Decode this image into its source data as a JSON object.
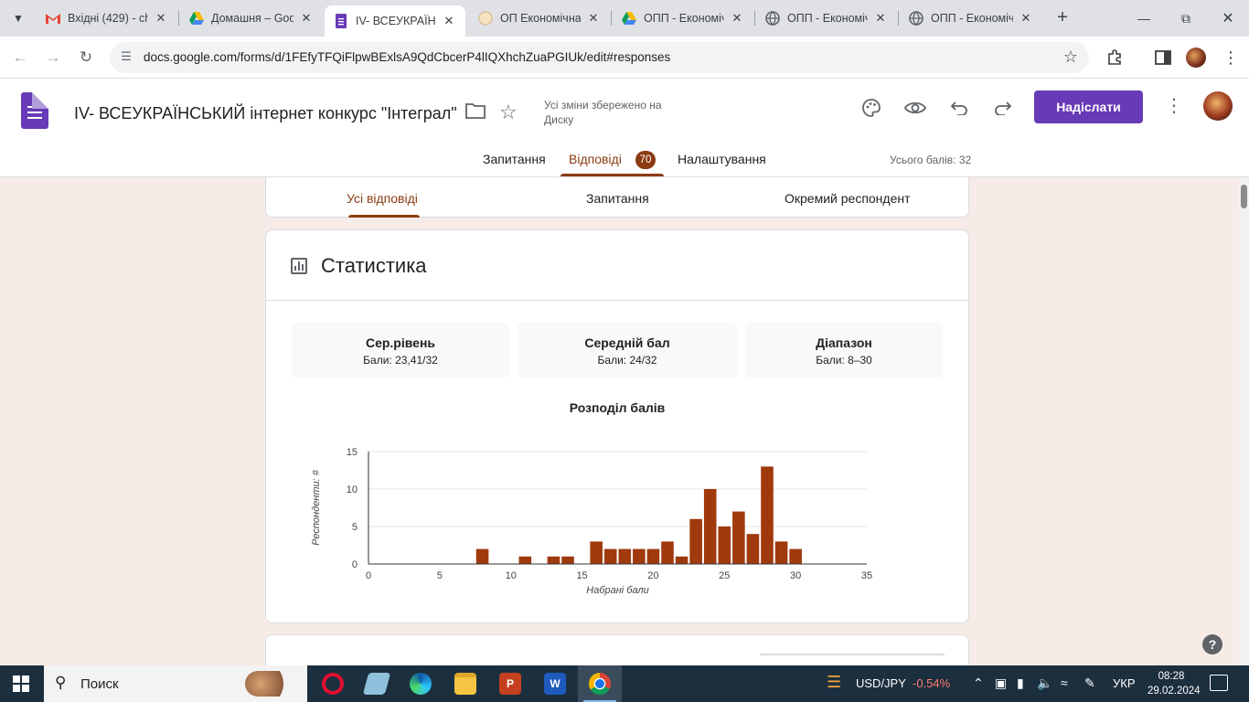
{
  "browser": {
    "tabs": [
      {
        "title": "Вхідні (429) - ch",
        "icon": "gmail-icon",
        "active": false
      },
      {
        "title": "Домашня – Goo",
        "icon": "drive-icon",
        "active": false
      },
      {
        "title": "IV- ВСЕУКРАЇНС",
        "icon": "forms-icon",
        "active": true
      },
      {
        "title": "ОП Економічна",
        "icon": "page-icon",
        "active": false
      },
      {
        "title": "ОПП - Економіч",
        "icon": "drive-icon",
        "active": false
      },
      {
        "title": "ОПП - Економіч",
        "icon": "globe-icon",
        "active": false
      },
      {
        "title": "ОПП - Економіч",
        "icon": "globe-icon",
        "active": false
      }
    ],
    "url": "docs.google.com/forms/d/1FEfyTFQiFlpwBExlsA9QdCbcerP4lIQXhchZuaPGIUk/edit#responses"
  },
  "header": {
    "form_title": "IV- ВСЕУКРАЇНСЬКИЙ інтернет конкурс \"Інтеграл\"",
    "saved_status": "Усі зміни збережено на Диску",
    "send_label": "Надіслати",
    "tabs": {
      "questions": "Запитання",
      "responses": "Відповіді",
      "settings": "Налаштування"
    },
    "responses_count": "70",
    "total_points": "Усього балів: 32"
  },
  "subtabs": {
    "summary": "Усі відповіді",
    "question": "Запитання",
    "individual": "Окремий респондент"
  },
  "stats": {
    "title": "Статистика",
    "boxes": [
      {
        "label": "Сер.рівень",
        "value": "Бали: 23,41/32"
      },
      {
        "label": "Середній бал",
        "value": "Бали: 24/32"
      },
      {
        "label": "Діапазон",
        "value": "Бали: 8–30"
      }
    ],
    "chart_title": "Розподіл балів"
  },
  "chart_data": {
    "type": "bar",
    "title": "Розподіл балів",
    "xlabel": "Набрані бали",
    "ylabel": "Респонденти: #",
    "xlim": [
      0,
      35
    ],
    "ylim": [
      0,
      15
    ],
    "xticks": [
      0,
      5,
      10,
      15,
      20,
      25,
      30,
      35
    ],
    "yticks": [
      0,
      5,
      10,
      15
    ],
    "x": [
      8,
      11,
      13,
      14,
      16,
      17,
      18,
      19,
      20,
      21,
      22,
      23,
      24,
      25,
      26,
      27,
      28,
      29,
      30
    ],
    "values": [
      2,
      1,
      1,
      1,
      3,
      2,
      2,
      2,
      2,
      3,
      1,
      6,
      10,
      5,
      7,
      4,
      13,
      3,
      2
    ],
    "bar_color": "#a0390c",
    "grid": true
  },
  "taskbar": {
    "search_label": "Поиск",
    "currency": "USD/JPY",
    "currency_change": "-0.54%",
    "language": "УКР",
    "time": "08:28",
    "date": "29.02.2024"
  },
  "colors": {
    "accent": "#673ab7",
    "response_theme": "#8a3b12",
    "background": "#f6ebe6"
  }
}
